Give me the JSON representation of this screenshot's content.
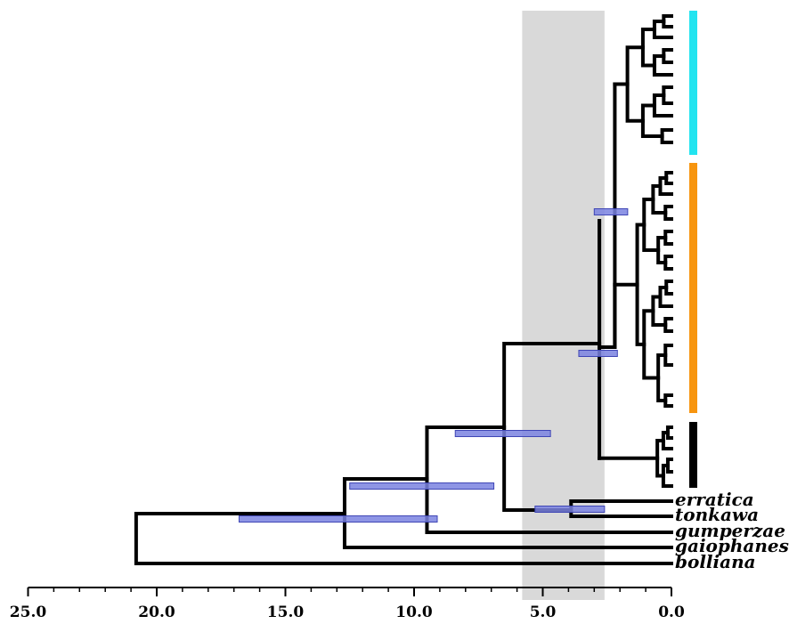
{
  "chart_data": {
    "type": "phylogenetic-tree",
    "axis": {
      "direction": "reversed",
      "ticks": [
        25.0,
        20.0,
        15.0,
        10.0,
        5.0,
        0.0
      ],
      "tick_labels": [
        "25.0",
        "20.0",
        "15.0",
        "10.0",
        "5.0",
        "0.0"
      ],
      "minor_tick_interval": 1.0,
      "range": [
        25.0,
        0.0
      ]
    },
    "shaded_interval": {
      "from": 5.8,
      "to": 2.6,
      "color": "#d9d9d9"
    },
    "tips": [
      {
        "label": "erratica",
        "age": 0.0
      },
      {
        "label": "tonkawa",
        "age": 0.0
      },
      {
        "label": "gumperzae",
        "age": 0.0
      },
      {
        "label": "gaiophanes",
        "age": 0.0
      },
      {
        "label": "bolliana",
        "age": 0.0
      }
    ],
    "nodes": [
      {
        "clade": "root",
        "age": 20.8,
        "hpd": [
          16.8,
          9.1
        ]
      },
      {
        "clade": "all-except-bolliana",
        "age": 12.7,
        "hpd": [
          12.5,
          6.9
        ]
      },
      {
        "clade": "all-except-gaiophanes-bolliana",
        "age": 9.5,
        "hpd": [
          8.4,
          4.7
        ]
      },
      {
        "clade": "main-clade-plus-erratica-tonkawa",
        "age": 6.5
      },
      {
        "clade": "erratica+tonkawa",
        "age": 3.9,
        "hpd": [
          5.3,
          2.6
        ]
      },
      {
        "clade": "cyan+orange+black",
        "age": 2.8,
        "hpd": [
          3.0,
          1.7
        ]
      },
      {
        "clade": "cyan+orange",
        "age": 2.2,
        "hpd": [
          3.6,
          2.1
        ]
      },
      {
        "clade": "cyan",
        "age": 1.8
      },
      {
        "clade": "orange",
        "age": 1.4
      },
      {
        "clade": "black",
        "age": 0.7
      }
    ],
    "clade_bars": [
      {
        "clade": "cyan",
        "color": "#22e4f0"
      },
      {
        "clade": "orange",
        "color": "#f7950f"
      },
      {
        "clade": "black",
        "color": "#000000"
      }
    ],
    "colors": {
      "hpd_bar": "#7a82e0",
      "hpd_bar_edge": "#3f46b5",
      "branch": "#000000"
    }
  }
}
